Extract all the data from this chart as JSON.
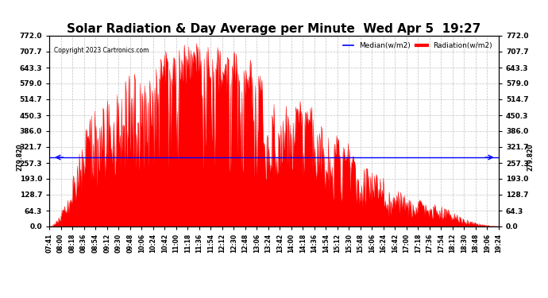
{
  "title": "Solar Radiation & Day Average per Minute  Wed Apr 5  19:27",
  "copyright": "Copyright 2023 Cartronics.com",
  "median_value": 279.82,
  "median_label": "Median(w/m2)",
  "radiation_label": "Radiation(w/m2)",
  "ymin": 0.0,
  "ymax": 772.0,
  "yticks": [
    0.0,
    64.3,
    128.7,
    193.0,
    257.3,
    321.7,
    386.0,
    450.3,
    514.7,
    579.0,
    643.3,
    707.7,
    772.0
  ],
  "median_color": "blue",
  "radiation_color": "red",
  "grid_color": "#bbbbbb",
  "title_fontsize": 11,
  "tick_labels": [
    "07:41",
    "08:00",
    "08:18",
    "08:36",
    "08:54",
    "09:12",
    "09:30",
    "09:48",
    "10:06",
    "10:24",
    "10:42",
    "11:00",
    "11:18",
    "11:36",
    "11:54",
    "12:12",
    "12:30",
    "12:48",
    "13:06",
    "13:24",
    "13:42",
    "14:00",
    "14:18",
    "14:36",
    "14:54",
    "15:12",
    "15:30",
    "15:48",
    "16:06",
    "16:24",
    "16:42",
    "17:00",
    "17:18",
    "17:36",
    "17:54",
    "18:12",
    "18:30",
    "18:48",
    "19:06",
    "19:24"
  ]
}
